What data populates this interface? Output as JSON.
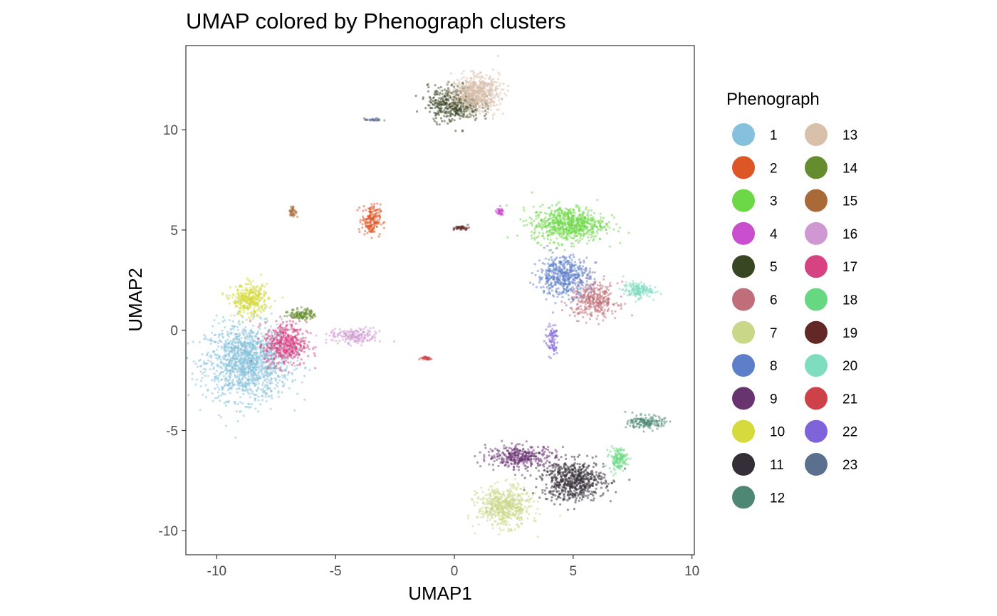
{
  "chart_data": {
    "type": "scatter",
    "title": "UMAP colored by Phenograph clusters",
    "xlabel": "UMAP1",
    "ylabel": "UMAP2",
    "xlim": [
      -11.3,
      10.1
    ],
    "ylim": [
      -11.2,
      14.2
    ],
    "xticks": [
      -10,
      -5,
      0,
      5,
      10
    ],
    "xtick_labels": [
      "-10",
      "-5",
      "0",
      "5",
      "10"
    ],
    "yticks": [
      -10,
      -5,
      0,
      5,
      10
    ],
    "ytick_labels": [
      "-10",
      "-5",
      "0",
      "5",
      "10"
    ],
    "grid": false,
    "legend": {
      "title": "Phenograph",
      "placement": "right",
      "columns": 2
    },
    "series": [
      {
        "name": "1",
        "color": "#85c1dc",
        "center": [
          -8.7,
          -1.6
        ],
        "spread": [
          1.6,
          1.7
        ],
        "n": 1400
      },
      {
        "name": "2",
        "color": "#dd5625",
        "center": [
          -3.5,
          5.5
        ],
        "spread": [
          0.35,
          0.7
        ],
        "n": 180
      },
      {
        "name": "3",
        "color": "#6dd847",
        "center": [
          4.8,
          5.3
        ],
        "spread": [
          1.4,
          0.8
        ],
        "n": 700
      },
      {
        "name": "4",
        "color": "#c94fce",
        "center": [
          1.9,
          5.9
        ],
        "spread": [
          0.15,
          0.15
        ],
        "n": 40
      },
      {
        "name": "5",
        "color": "#384624",
        "center": [
          0.0,
          11.3
        ],
        "spread": [
          1.0,
          0.8
        ],
        "n": 450
      },
      {
        "name": "6",
        "color": "#c06f7a",
        "center": [
          5.9,
          1.5
        ],
        "spread": [
          0.9,
          0.8
        ],
        "n": 350
      },
      {
        "name": "7",
        "color": "#c9d788",
        "center": [
          2.1,
          -8.8
        ],
        "spread": [
          1.0,
          0.9
        ],
        "n": 550
      },
      {
        "name": "8",
        "color": "#5d7fca",
        "center": [
          4.6,
          2.7
        ],
        "spread": [
          1.0,
          0.9
        ],
        "n": 500
      },
      {
        "name": "9",
        "color": "#673470",
        "center": [
          2.8,
          -6.3
        ],
        "spread": [
          1.3,
          0.5
        ],
        "n": 350
      },
      {
        "name": "10",
        "color": "#d6da3c",
        "center": [
          -8.6,
          1.5
        ],
        "spread": [
          0.7,
          0.7
        ],
        "n": 350
      },
      {
        "name": "11",
        "color": "#332e38",
        "center": [
          5.0,
          -7.5
        ],
        "spread": [
          1.2,
          0.9
        ],
        "n": 650
      },
      {
        "name": "12",
        "color": "#4e8874",
        "center": [
          8.1,
          -4.6
        ],
        "spread": [
          0.7,
          0.3
        ],
        "n": 160
      },
      {
        "name": "13",
        "color": "#d8c0ab",
        "center": [
          0.9,
          11.8
        ],
        "spread": [
          0.9,
          0.8
        ],
        "n": 650
      },
      {
        "name": "14",
        "color": "#658c2e",
        "center": [
          -6.4,
          0.8
        ],
        "spread": [
          0.5,
          0.25
        ],
        "n": 120
      },
      {
        "name": "15",
        "color": "#a96938",
        "center": [
          -6.8,
          5.9
        ],
        "spread": [
          0.15,
          0.25
        ],
        "n": 40
      },
      {
        "name": "16",
        "color": "#cf98d2",
        "center": [
          -4.2,
          -0.3
        ],
        "spread": [
          1.0,
          0.35
        ],
        "n": 170
      },
      {
        "name": "17",
        "color": "#d74282",
        "center": [
          -7.1,
          -0.7
        ],
        "spread": [
          0.8,
          1.0
        ],
        "n": 450
      },
      {
        "name": "18",
        "color": "#67d882",
        "center": [
          6.9,
          -6.4
        ],
        "spread": [
          0.35,
          0.5
        ],
        "n": 130
      },
      {
        "name": "19",
        "color": "#632726",
        "center": [
          0.3,
          5.1
        ],
        "spread": [
          0.3,
          0.1
        ],
        "n": 40
      },
      {
        "name": "20",
        "color": "#7edcbf",
        "center": [
          7.7,
          2.0
        ],
        "spread": [
          0.55,
          0.35
        ],
        "n": 160
      },
      {
        "name": "21",
        "color": "#cc4248",
        "center": [
          -1.2,
          -1.4
        ],
        "spread": [
          0.25,
          0.1
        ],
        "n": 30
      },
      {
        "name": "22",
        "color": "#7f63d9",
        "center": [
          4.1,
          -0.5
        ],
        "spread": [
          0.25,
          0.7
        ],
        "n": 80
      },
      {
        "name": "23",
        "color": "#5b708f",
        "center": [
          -3.4,
          10.5
        ],
        "spread": [
          0.35,
          0.07
        ],
        "n": 30
      }
    ]
  }
}
